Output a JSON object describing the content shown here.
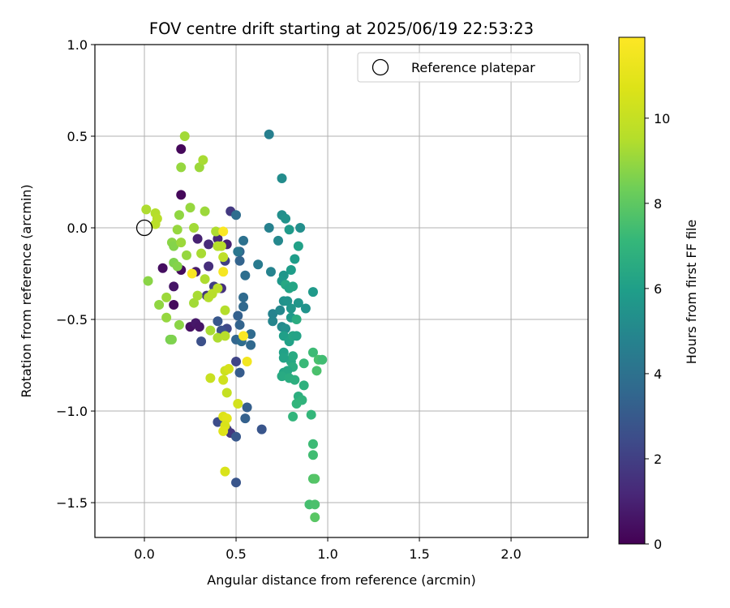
{
  "chart_data": {
    "type": "scatter",
    "title": "FOV centre drift starting at 2025/06/19 22:53:23",
    "xlabel": "Angular distance from reference (arcmin)",
    "ylabel": "Rotation from reference (arcmin)",
    "xlim": [
      -0.27,
      2.42
    ],
    "ylim": [
      -1.69,
      1.0
    ],
    "xticks": [
      0.0,
      0.5,
      1.0,
      1.5,
      2.0
    ],
    "xtick_labels": [
      "0.0",
      "0.5",
      "1.0",
      "1.5",
      "2.0"
    ],
    "yticks": [
      1.0,
      0.5,
      0.0,
      -0.5,
      -1.0,
      -1.5
    ],
    "ytick_labels": [
      "1.0",
      "0.5",
      "0.0",
      "−0.5",
      "−1.0",
      "−1.5"
    ],
    "grid": true,
    "legend": {
      "placement": "top-right",
      "entries": [
        "Reference platepar"
      ]
    },
    "reference_point": {
      "x": 0.0,
      "y": 0.0,
      "marker": "open-circle",
      "color": "#000000"
    },
    "colorbar": {
      "label": "Hours from first FF file",
      "range": [
        0,
        11.9
      ],
      "ticks": [
        0,
        2,
        4,
        6,
        8,
        10
      ],
      "tick_labels": [
        "0",
        "2",
        "4",
        "6",
        "8",
        "10"
      ],
      "colormap": "viridis"
    },
    "points": [
      {
        "x": 0.2,
        "y": 0.43,
        "h": 0.2
      },
      {
        "x": 0.2,
        "y": 0.18,
        "h": 0.2
      },
      {
        "x": 0.2,
        "y": -0.23,
        "h": 0.3
      },
      {
        "x": 0.1,
        "y": -0.22,
        "h": 0.4
      },
      {
        "x": 0.16,
        "y": -0.42,
        "h": 0.3
      },
      {
        "x": 0.16,
        "y": -0.32,
        "h": 0.6
      },
      {
        "x": 0.25,
        "y": -0.54,
        "h": 0.5
      },
      {
        "x": 0.28,
        "y": -0.52,
        "h": 0.7
      },
      {
        "x": 0.3,
        "y": -0.54,
        "h": 0.6
      },
      {
        "x": 0.28,
        "y": -0.24,
        "h": 0.8
      },
      {
        "x": 0.29,
        "y": -0.06,
        "h": 1.0
      },
      {
        "x": 0.35,
        "y": -0.21,
        "h": 1.4
      },
      {
        "x": 0.35,
        "y": -0.09,
        "h": 1.3
      },
      {
        "x": 0.4,
        "y": -0.06,
        "h": 1.2
      },
      {
        "x": 0.42,
        "y": -0.33,
        "h": 1.5
      },
      {
        "x": 0.45,
        "y": -0.09,
        "h": 1.0
      },
      {
        "x": 0.47,
        "y": 0.09,
        "h": 1.8
      },
      {
        "x": 0.31,
        "y": -0.62,
        "h": 2.6
      },
      {
        "x": 0.34,
        "y": -0.37,
        "h": 1.7
      },
      {
        "x": 0.38,
        "y": -0.32,
        "h": 2.0
      },
      {
        "x": 0.44,
        "y": -0.18,
        "h": 2.0
      },
      {
        "x": 0.45,
        "y": -0.55,
        "h": 2.3
      },
      {
        "x": 0.4,
        "y": -0.51,
        "h": 2.9
      },
      {
        "x": 0.42,
        "y": -0.56,
        "h": 2.6
      },
      {
        "x": 0.5,
        "y": -0.73,
        "h": 2.2
      },
      {
        "x": 0.4,
        "y": -1.06,
        "h": 2.5
      },
      {
        "x": 0.45,
        "y": -1.1,
        "h": 2.1
      },
      {
        "x": 0.47,
        "y": -1.12,
        "h": 1.7
      },
      {
        "x": 0.5,
        "y": -1.14,
        "h": 2.9
      },
      {
        "x": 0.5,
        "y": -1.39,
        "h": 2.8
      },
      {
        "x": 0.52,
        "y": -0.79,
        "h": 3.1
      },
      {
        "x": 0.5,
        "y": -0.61,
        "h": 3.5
      },
      {
        "x": 0.55,
        "y": -1.04,
        "h": 3.3
      },
      {
        "x": 0.56,
        "y": -0.98,
        "h": 3.2
      },
      {
        "x": 0.64,
        "y": -1.1,
        "h": 2.8
      },
      {
        "x": 0.53,
        "y": -0.62,
        "h": 3.8
      },
      {
        "x": 0.58,
        "y": -0.64,
        "h": 3.6
      },
      {
        "x": 0.58,
        "y": -0.58,
        "h": 3.7
      },
      {
        "x": 0.52,
        "y": -0.18,
        "h": 3.4
      },
      {
        "x": 0.52,
        "y": -0.13,
        "h": 3.5
      },
      {
        "x": 0.55,
        "y": -0.26,
        "h": 3.9
      },
      {
        "x": 0.54,
        "y": -0.38,
        "h": 3.7
      },
      {
        "x": 0.54,
        "y": -0.43,
        "h": 3.6
      },
      {
        "x": 0.51,
        "y": -0.48,
        "h": 3.3
      },
      {
        "x": 0.52,
        "y": -0.53,
        "h": 3.4
      },
      {
        "x": 0.5,
        "y": 0.07,
        "h": 3.8
      },
      {
        "x": 0.54,
        "y": -0.07,
        "h": 4.0
      },
      {
        "x": 0.51,
        "y": -0.13,
        "h": 4.2
      },
      {
        "x": 0.62,
        "y": -0.2,
        "h": 4.4
      },
      {
        "x": 0.68,
        "y": 0.51,
        "h": 4.6
      },
      {
        "x": 0.68,
        "y": 0.0,
        "h": 4.7
      },
      {
        "x": 0.69,
        "y": -0.24,
        "h": 4.8
      },
      {
        "x": 0.7,
        "y": -0.47,
        "h": 4.8
      },
      {
        "x": 0.7,
        "y": -0.51,
        "h": 4.9
      },
      {
        "x": 0.73,
        "y": -0.07,
        "h": 5.0
      },
      {
        "x": 0.75,
        "y": 0.27,
        "h": 5.2
      },
      {
        "x": 0.75,
        "y": 0.07,
        "h": 5.3
      },
      {
        "x": 0.77,
        "y": 0.05,
        "h": 5.5
      },
      {
        "x": 0.74,
        "y": -0.45,
        "h": 5.0
      },
      {
        "x": 0.75,
        "y": -0.54,
        "h": 5.1
      },
      {
        "x": 0.77,
        "y": -0.55,
        "h": 5.3
      },
      {
        "x": 0.76,
        "y": -0.26,
        "h": 5.6
      },
      {
        "x": 0.75,
        "y": -0.29,
        "h": 5.7
      },
      {
        "x": 0.76,
        "y": -0.4,
        "h": 5.4
      },
      {
        "x": 0.78,
        "y": -0.4,
        "h": 5.5
      },
      {
        "x": 0.79,
        "y": -0.01,
        "h": 5.8
      },
      {
        "x": 0.8,
        "y": -0.23,
        "h": 5.9
      },
      {
        "x": 0.8,
        "y": -0.44,
        "h": 5.6
      },
      {
        "x": 0.8,
        "y": -0.49,
        "h": 5.8
      },
      {
        "x": 0.82,
        "y": -0.17,
        "h": 5.9
      },
      {
        "x": 0.84,
        "y": -0.1,
        "h": 6.1
      },
      {
        "x": 0.85,
        "y": 0.0,
        "h": 5.3
      },
      {
        "x": 0.84,
        "y": -0.41,
        "h": 5.6
      },
      {
        "x": 0.88,
        "y": -0.44,
        "h": 5.5
      },
      {
        "x": 0.92,
        "y": -0.35,
        "h": 5.8
      },
      {
        "x": 0.76,
        "y": -0.59,
        "h": 6.0
      },
      {
        "x": 0.79,
        "y": -0.62,
        "h": 6.1
      },
      {
        "x": 0.81,
        "y": -0.59,
        "h": 6.3
      },
      {
        "x": 0.83,
        "y": -0.59,
        "h": 6.2
      },
      {
        "x": 0.77,
        "y": -0.31,
        "h": 6.4
      },
      {
        "x": 0.79,
        "y": -0.33,
        "h": 6.2
      },
      {
        "x": 0.81,
        "y": -0.32,
        "h": 6.3
      },
      {
        "x": 0.8,
        "y": -0.73,
        "h": 6.4
      },
      {
        "x": 0.81,
        "y": -0.7,
        "h": 6.5
      },
      {
        "x": 0.76,
        "y": -0.68,
        "h": 6.1
      },
      {
        "x": 0.76,
        "y": -0.71,
        "h": 6.2
      },
      {
        "x": 0.83,
        "y": -0.5,
        "h": 6.6
      },
      {
        "x": 0.81,
        "y": -0.76,
        "h": 6.6
      },
      {
        "x": 0.76,
        "y": -0.79,
        "h": 6.3
      },
      {
        "x": 0.78,
        "y": -0.78,
        "h": 6.4
      },
      {
        "x": 0.75,
        "y": -0.81,
        "h": 6.5
      },
      {
        "x": 0.79,
        "y": -0.82,
        "h": 6.6
      },
      {
        "x": 0.82,
        "y": -0.83,
        "h": 6.7
      },
      {
        "x": 0.87,
        "y": -0.86,
        "h": 6.8
      },
      {
        "x": 0.84,
        "y": -0.92,
        "h": 6.7
      },
      {
        "x": 0.86,
        "y": -0.94,
        "h": 6.9
      },
      {
        "x": 0.83,
        "y": -0.96,
        "h": 7.0
      },
      {
        "x": 0.81,
        "y": -1.03,
        "h": 7.0
      },
      {
        "x": 0.91,
        "y": -1.02,
        "h": 7.1
      },
      {
        "x": 0.87,
        "y": -0.74,
        "h": 7.2
      },
      {
        "x": 0.92,
        "y": -0.68,
        "h": 7.3
      },
      {
        "x": 0.95,
        "y": -0.72,
        "h": 7.6
      },
      {
        "x": 0.97,
        "y": -0.72,
        "h": 7.4
      },
      {
        "x": 0.94,
        "y": -0.78,
        "h": 7.6
      },
      {
        "x": 0.92,
        "y": -1.18,
        "h": 7.3
      },
      {
        "x": 0.92,
        "y": -1.24,
        "h": 7.4
      },
      {
        "x": 0.92,
        "y": -1.37,
        "h": 7.7
      },
      {
        "x": 0.93,
        "y": -1.37,
        "h": 7.8
      },
      {
        "x": 0.9,
        "y": -1.51,
        "h": 7.5
      },
      {
        "x": 0.93,
        "y": -1.51,
        "h": 7.6
      },
      {
        "x": 0.93,
        "y": -1.58,
        "h": 7.9
      },
      {
        "x": 0.22,
        "y": 0.5,
        "h": 9.2
      },
      {
        "x": 0.2,
        "y": 0.33,
        "h": 9.0
      },
      {
        "x": 0.3,
        "y": 0.33,
        "h": 9.1
      },
      {
        "x": 0.32,
        "y": 0.37,
        "h": 9.3
      },
      {
        "x": 0.19,
        "y": 0.07,
        "h": 8.9
      },
      {
        "x": 0.25,
        "y": 0.11,
        "h": 9.0
      },
      {
        "x": 0.27,
        "y": 0.0,
        "h": 9.2
      },
      {
        "x": 0.33,
        "y": 0.09,
        "h": 9.1
      },
      {
        "x": 0.01,
        "y": 0.1,
        "h": 9.4
      },
      {
        "x": 0.06,
        "y": 0.08,
        "h": 9.5
      },
      {
        "x": 0.07,
        "y": 0.05,
        "h": 9.6
      },
      {
        "x": 0.06,
        "y": 0.02,
        "h": 9.7
      },
      {
        "x": 0.02,
        "y": -0.29,
        "h": 8.8
      },
      {
        "x": 0.08,
        "y": -0.42,
        "h": 8.9
      },
      {
        "x": 0.12,
        "y": -0.38,
        "h": 9.1
      },
      {
        "x": 0.12,
        "y": -0.49,
        "h": 9.0
      },
      {
        "x": 0.15,
        "y": -0.08,
        "h": 8.8
      },
      {
        "x": 0.16,
        "y": -0.1,
        "h": 8.7
      },
      {
        "x": 0.18,
        "y": -0.01,
        "h": 9.0
      },
      {
        "x": 0.16,
        "y": -0.19,
        "h": 8.6
      },
      {
        "x": 0.18,
        "y": -0.21,
        "h": 8.7
      },
      {
        "x": 0.2,
        "y": -0.08,
        "h": 9.1
      },
      {
        "x": 0.23,
        "y": -0.15,
        "h": 9.0
      },
      {
        "x": 0.19,
        "y": -0.53,
        "h": 8.8
      },
      {
        "x": 0.14,
        "y": -0.61,
        "h": 8.5
      },
      {
        "x": 0.15,
        "y": -0.61,
        "h": 8.6
      },
      {
        "x": 0.27,
        "y": -0.41,
        "h": 9.2
      },
      {
        "x": 0.29,
        "y": -0.37,
        "h": 9.3
      },
      {
        "x": 0.31,
        "y": -0.14,
        "h": 9.3
      },
      {
        "x": 0.33,
        "y": -0.28,
        "h": 9.4
      },
      {
        "x": 0.35,
        "y": -0.38,
        "h": 9.5
      },
      {
        "x": 0.37,
        "y": -0.36,
        "h": 9.6
      },
      {
        "x": 0.4,
        "y": -0.33,
        "h": 9.7
      },
      {
        "x": 0.39,
        "y": -0.02,
        "h": 9.4
      },
      {
        "x": 0.4,
        "y": -0.1,
        "h": 9.5
      },
      {
        "x": 0.42,
        "y": -0.1,
        "h": 9.6
      },
      {
        "x": 0.43,
        "y": -0.16,
        "h": 9.8
      },
      {
        "x": 0.36,
        "y": -0.56,
        "h": 9.3
      },
      {
        "x": 0.4,
        "y": -0.6,
        "h": 9.4
      },
      {
        "x": 0.44,
        "y": -0.59,
        "h": 9.6
      },
      {
        "x": 0.44,
        "y": -0.45,
        "h": 9.5
      },
      {
        "x": 0.36,
        "y": -0.82,
        "h": 10.1
      },
      {
        "x": 0.43,
        "y": -0.83,
        "h": 10.3
      },
      {
        "x": 0.44,
        "y": -0.78,
        "h": 10.2
      },
      {
        "x": 0.46,
        "y": -0.77,
        "h": 10.5
      },
      {
        "x": 0.45,
        "y": -0.9,
        "h": 10.0
      },
      {
        "x": 0.51,
        "y": -0.96,
        "h": 10.4
      },
      {
        "x": 0.43,
        "y": -1.03,
        "h": 10.7
      },
      {
        "x": 0.45,
        "y": -1.04,
        "h": 10.9
      },
      {
        "x": 0.44,
        "y": -1.08,
        "h": 10.6
      },
      {
        "x": 0.43,
        "y": -1.11,
        "h": 10.8
      },
      {
        "x": 0.44,
        "y": -1.33,
        "h": 10.6
      },
      {
        "x": 0.26,
        "y": -0.25,
        "h": 11.7
      },
      {
        "x": 0.43,
        "y": -0.02,
        "h": 11.8
      },
      {
        "x": 0.43,
        "y": -0.24,
        "h": 11.6
      },
      {
        "x": 0.54,
        "y": -0.59,
        "h": 11.8
      },
      {
        "x": 0.56,
        "y": -0.73,
        "h": 11.5
      }
    ]
  }
}
